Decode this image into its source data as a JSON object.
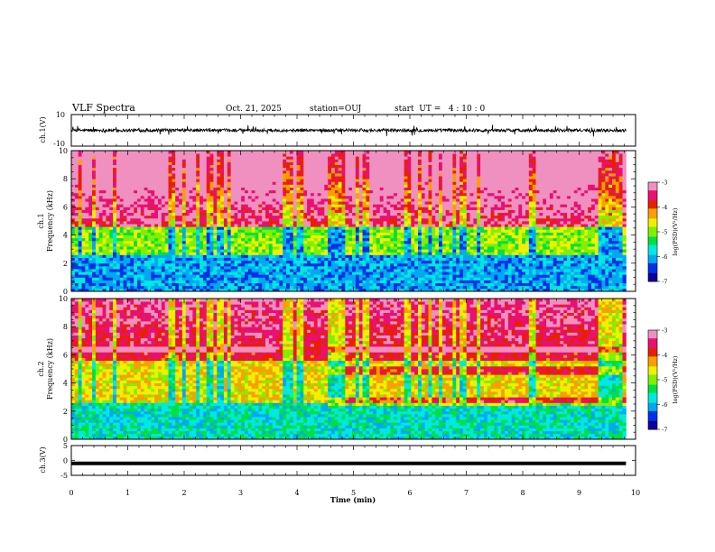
{
  "header": {
    "title": "VLF Spectra",
    "date": "Oct. 21, 2025",
    "station": "station=OUJ",
    "start_ut": "start  UT =   4 : 10 : 0"
  },
  "chart_data": [
    {
      "type": "line",
      "panel": "ch1-waveform",
      "ylabel": "ch.1(V)",
      "ylim": [
        -10,
        10
      ],
      "yticks": [
        "10",
        "-10"
      ],
      "xlim": [
        0,
        10
      ],
      "baseline": 0,
      "amplitude_typical": 2.0
    },
    {
      "type": "heatmap",
      "panel": "ch1-spectrogram",
      "ylabel_top": "ch.1",
      "ylabel": "Frequency (kHz)",
      "ylim": [
        0,
        10
      ],
      "yticks": [
        "0",
        "2",
        "4",
        "6",
        "8",
        "10"
      ],
      "xlim": [
        0,
        10
      ],
      "data_end_min": 9.83,
      "colorbar": {
        "label": "log(PSD)(V²/Hz)",
        "range": [
          -7,
          -3
        ],
        "ticks": [
          "-3",
          "-4",
          "-5",
          "-6",
          "-7"
        ]
      }
    },
    {
      "type": "heatmap",
      "panel": "ch2-spectrogram",
      "ylabel_top": "ch.2",
      "ylabel": "Frequency (kHz)",
      "ylim": [
        0,
        10
      ],
      "yticks": [
        "0",
        "2",
        "4",
        "6",
        "8",
        "10"
      ],
      "xlim": [
        0,
        10
      ],
      "data_end_min": 9.83,
      "bands_khz": [
        2.7,
        4.9,
        6.4
      ],
      "band_start_min": 4.55,
      "colorbar": {
        "label": "log(PSD)(V²/Hz)",
        "range": [
          -7,
          -3
        ],
        "ticks": [
          "-3",
          "-4",
          "-5",
          "-6",
          "-7"
        ]
      }
    },
    {
      "type": "line",
      "panel": "ch3-waveform",
      "ylabel": "ch.3(V)",
      "ylim": [
        -5,
        5
      ],
      "yticks": [
        "5",
        "0",
        "-5"
      ],
      "xlim": [
        0,
        10
      ],
      "level": -1.0
    },
    {
      "type": "axis",
      "panel": "time-axis",
      "xlabel": "Time (min)",
      "xticks": [
        "0",
        "1",
        "2",
        "3",
        "4",
        "5",
        "6",
        "7",
        "8",
        "9",
        "10"
      ]
    }
  ],
  "colors": {
    "colormap": [
      "#1000a0",
      "#0030e8",
      "#00a8f0",
      "#00e8e0",
      "#00e040",
      "#80f000",
      "#f0f000",
      "#f8a000",
      "#e82000",
      "#e81070",
      "#f090c0"
    ],
    "axis": "#000000",
    "trace": "#000000"
  }
}
